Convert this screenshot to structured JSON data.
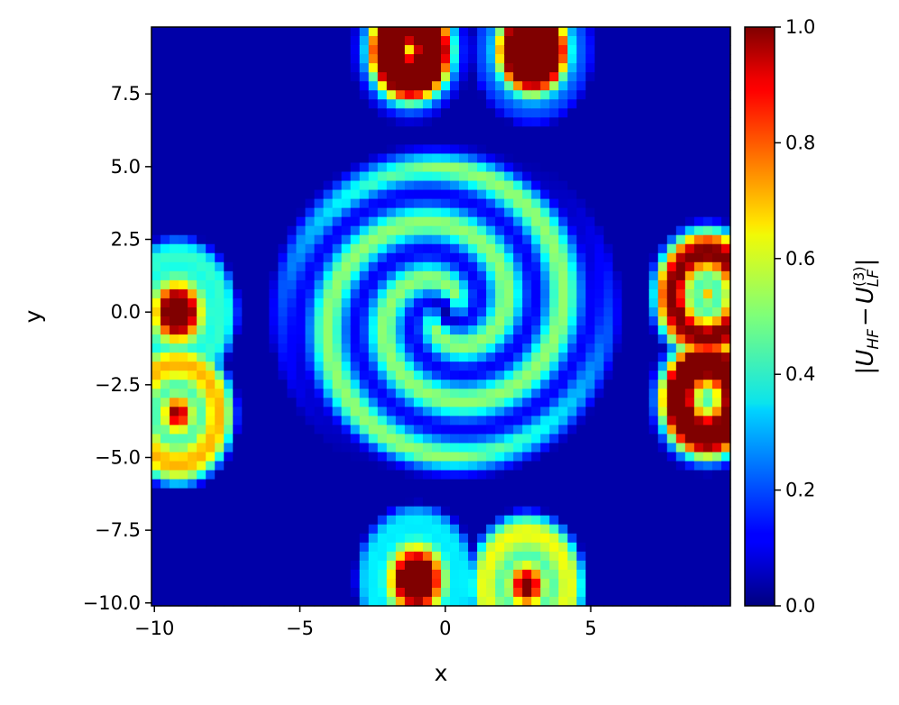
{
  "chart_data": {
    "type": "heatmap",
    "title": "",
    "xlabel": "x",
    "ylabel": "y",
    "xlim": [
      -10.1,
      9.8
    ],
    "ylim": [
      -10.1,
      9.8
    ],
    "xticks": [
      -10,
      -5,
      0,
      5
    ],
    "xtick_labels": [
      "−10",
      "−5",
      "0",
      "5"
    ],
    "yticks": [
      -10,
      -7.5,
      -5,
      -2.5,
      0,
      2.5,
      5,
      7.5
    ],
    "ytick_labels": [
      "−10.0",
      "−7.5",
      "−5.0",
      "−2.5",
      "0.0",
      "2.5",
      "5.0",
      "7.5"
    ],
    "grid": false,
    "colormap": "jet",
    "grid_resolution": 64,
    "colorbar": {
      "label": "|U_HF − U_LF^(3)|",
      "label_parts": {
        "bar": "|",
        "u1": "U",
        "sub1": "HF",
        "minus": "−",
        "u2": "U",
        "sub2": "LF",
        "sup2": "(3)"
      },
      "range": [
        0,
        1
      ],
      "ticks": [
        0,
        0.2,
        0.4,
        0.6,
        0.8,
        1.0
      ],
      "tick_labels": [
        "0.0",
        "0.2",
        "0.4",
        "0.6",
        "0.8",
        "1.0"
      ]
    },
    "features": {
      "background_level": 0.04,
      "spiral": {
        "center": [
          0,
          0
        ],
        "arms": 2,
        "turns": 2.5,
        "outer_radius": 5.0,
        "peak_level": 0.4
      },
      "hotspots": [
        {
          "x": -9.2,
          "y": 0.0,
          "peak": 1.0
        },
        {
          "x": -9.2,
          "y": -3.5,
          "peak": 1.0
        },
        {
          "x": 9.0,
          "y": 0.6,
          "peak": 1.0
        },
        {
          "x": 9.0,
          "y": -3.0,
          "peak": 1.0
        },
        {
          "x": -1.2,
          "y": 9.0,
          "peak": 1.0
        },
        {
          "x": 3.0,
          "y": 9.0,
          "peak": 1.0
        },
        {
          "x": -1.0,
          "y": -9.2,
          "peak": 1.0
        },
        {
          "x": 2.8,
          "y": -9.4,
          "peak": 1.0
        }
      ]
    }
  }
}
